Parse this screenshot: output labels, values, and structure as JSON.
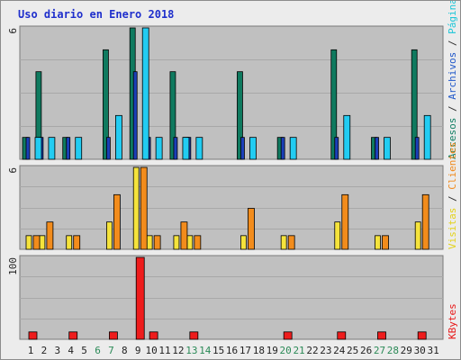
{
  "chart_data": {
    "type": "bar",
    "title": "Uso diario en Enero 2018",
    "categories": [
      "1",
      "2",
      "3",
      "4",
      "5",
      "6",
      "7",
      "8",
      "9",
      "10",
      "11",
      "12",
      "13",
      "14",
      "15",
      "16",
      "17",
      "18",
      "19",
      "20",
      "21",
      "22",
      "23",
      "24",
      "25",
      "26",
      "27",
      "28",
      "29",
      "30",
      "31"
    ],
    "weekend_days": [
      "6",
      "7",
      "13",
      "14",
      "20",
      "21",
      "27",
      "28"
    ],
    "panels": [
      {
        "name": "top",
        "ymax_label": "6",
        "ymax": 6,
        "right_legend": [
          {
            "text": "Accesos",
            "color": "#127f64"
          },
          {
            "text": " / ",
            "color": "#333333"
          },
          {
            "text": "Archivos",
            "color": "#1f57c9"
          },
          {
            "text": " / ",
            "color": "#333333"
          },
          {
            "text": "Páginas",
            "color": "#1cc6d8"
          }
        ],
        "series": [
          {
            "values": [
              1,
              4,
              0,
              1,
              0,
              0,
              5,
              0,
              6,
              1,
              0,
              4,
              1,
              0,
              0,
              0,
              4,
              0,
              0,
              1,
              0,
              0,
              0,
              5,
              0,
              0,
              1,
              0,
              0,
              5,
              0
            ],
            "color": "#0f7a5f"
          },
          {
            "values": [
              1,
              1,
              0,
              1,
              0,
              0,
              1,
              0,
              4,
              1,
              0,
              1,
              1,
              0,
              0,
              0,
              1,
              0,
              0,
              1,
              0,
              0,
              0,
              1,
              0,
              0,
              1,
              0,
              0,
              1,
              0
            ],
            "color": "#1b3fb8"
          },
          {
            "values": [
              1,
              1,
              0,
              1,
              0,
              0,
              2,
              0,
              6,
              1,
              0,
              1,
              1,
              0,
              0,
              0,
              1,
              0,
              0,
              1,
              0,
              0,
              0,
              2,
              0,
              0,
              1,
              0,
              0,
              2,
              0
            ],
            "color": "#22ccf2"
          }
        ]
      },
      {
        "name": "middle",
        "ymax_label": "6",
        "ymax": 6,
        "right_legend": [
          {
            "text": "Visitas",
            "color": "#e3d21a"
          },
          {
            "text": " / ",
            "color": "#333333"
          },
          {
            "text": "Clientes",
            "color": "#f08a1c"
          }
        ],
        "series": [
          {
            "values": [
              1,
              1,
              0,
              1,
              0,
              0,
              2,
              0,
              6,
              1,
              0,
              1,
              1,
              0,
              0,
              0,
              1,
              0,
              0,
              1,
              0,
              0,
              0,
              2,
              0,
              0,
              1,
              0,
              0,
              2,
              0
            ],
            "color": "#f5e33c"
          },
          {
            "values": [
              1,
              2,
              0,
              1,
              0,
              0,
              4,
              0,
              6,
              1,
              0,
              2,
              1,
              0,
              0,
              0,
              3,
              0,
              0,
              1,
              0,
              0,
              0,
              4,
              0,
              0,
              1,
              0,
              0,
              4,
              0
            ],
            "color": "#f28c1c"
          }
        ]
      },
      {
        "name": "bottom",
        "ymax_label": "100",
        "ymax": 100,
        "right_legend": [
          {
            "text": "KBytes",
            "color": "#e81818"
          }
        ],
        "series": [
          {
            "values": [
              9,
              0,
              0,
              9,
              0,
              0,
              9,
              0,
              100,
              9,
              0,
              0,
              9,
              0,
              0,
              0,
              0,
              0,
              0,
              9,
              0,
              0,
              0,
              9,
              0,
              0,
              9,
              0,
              0,
              9,
              0
            ],
            "color": "#ee1c1c"
          }
        ]
      }
    ],
    "colors": {
      "plot_bg": "#c0c0c0",
      "grid": "#a8a8a8",
      "title": "#1f2fcc",
      "label": "#222222",
      "weekend_label": "#2b8a57"
    }
  }
}
